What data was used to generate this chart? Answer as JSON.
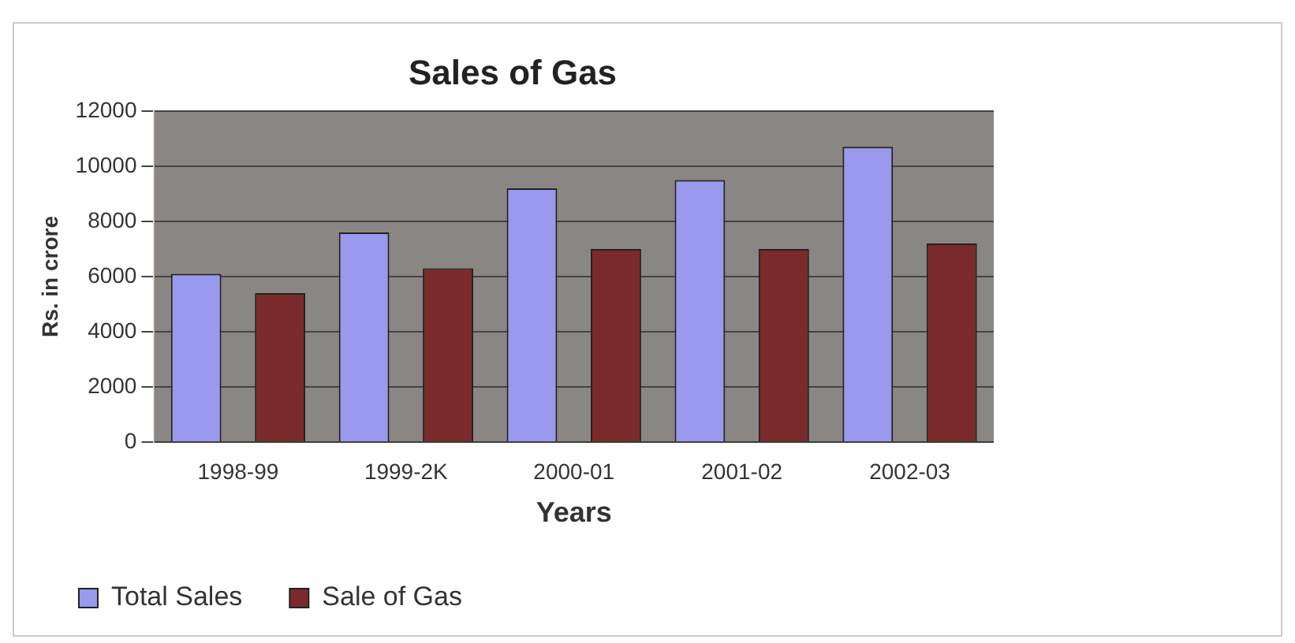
{
  "chart_data": {
    "type": "bar",
    "title": "Sales of Gas",
    "xlabel": "Years",
    "ylabel": "Rs. in crore",
    "categories": [
      "1998-99",
      "1999-2K",
      "2000-01",
      "2001-02",
      "2002-03"
    ],
    "series": [
      {
        "name": "Total Sales",
        "color": "#9999ee",
        "values": [
          6100,
          7600,
          9200,
          9500,
          10700
        ]
      },
      {
        "name": "Sale of Gas",
        "color": "#7a2a2a",
        "values": [
          5400,
          6300,
          7000,
          7000,
          7200
        ]
      }
    ],
    "ylim": [
      0,
      12000
    ],
    "yticks": [
      0,
      2000,
      4000,
      6000,
      8000,
      10000,
      12000
    ],
    "grid": "y",
    "legend": "bottom left"
  }
}
